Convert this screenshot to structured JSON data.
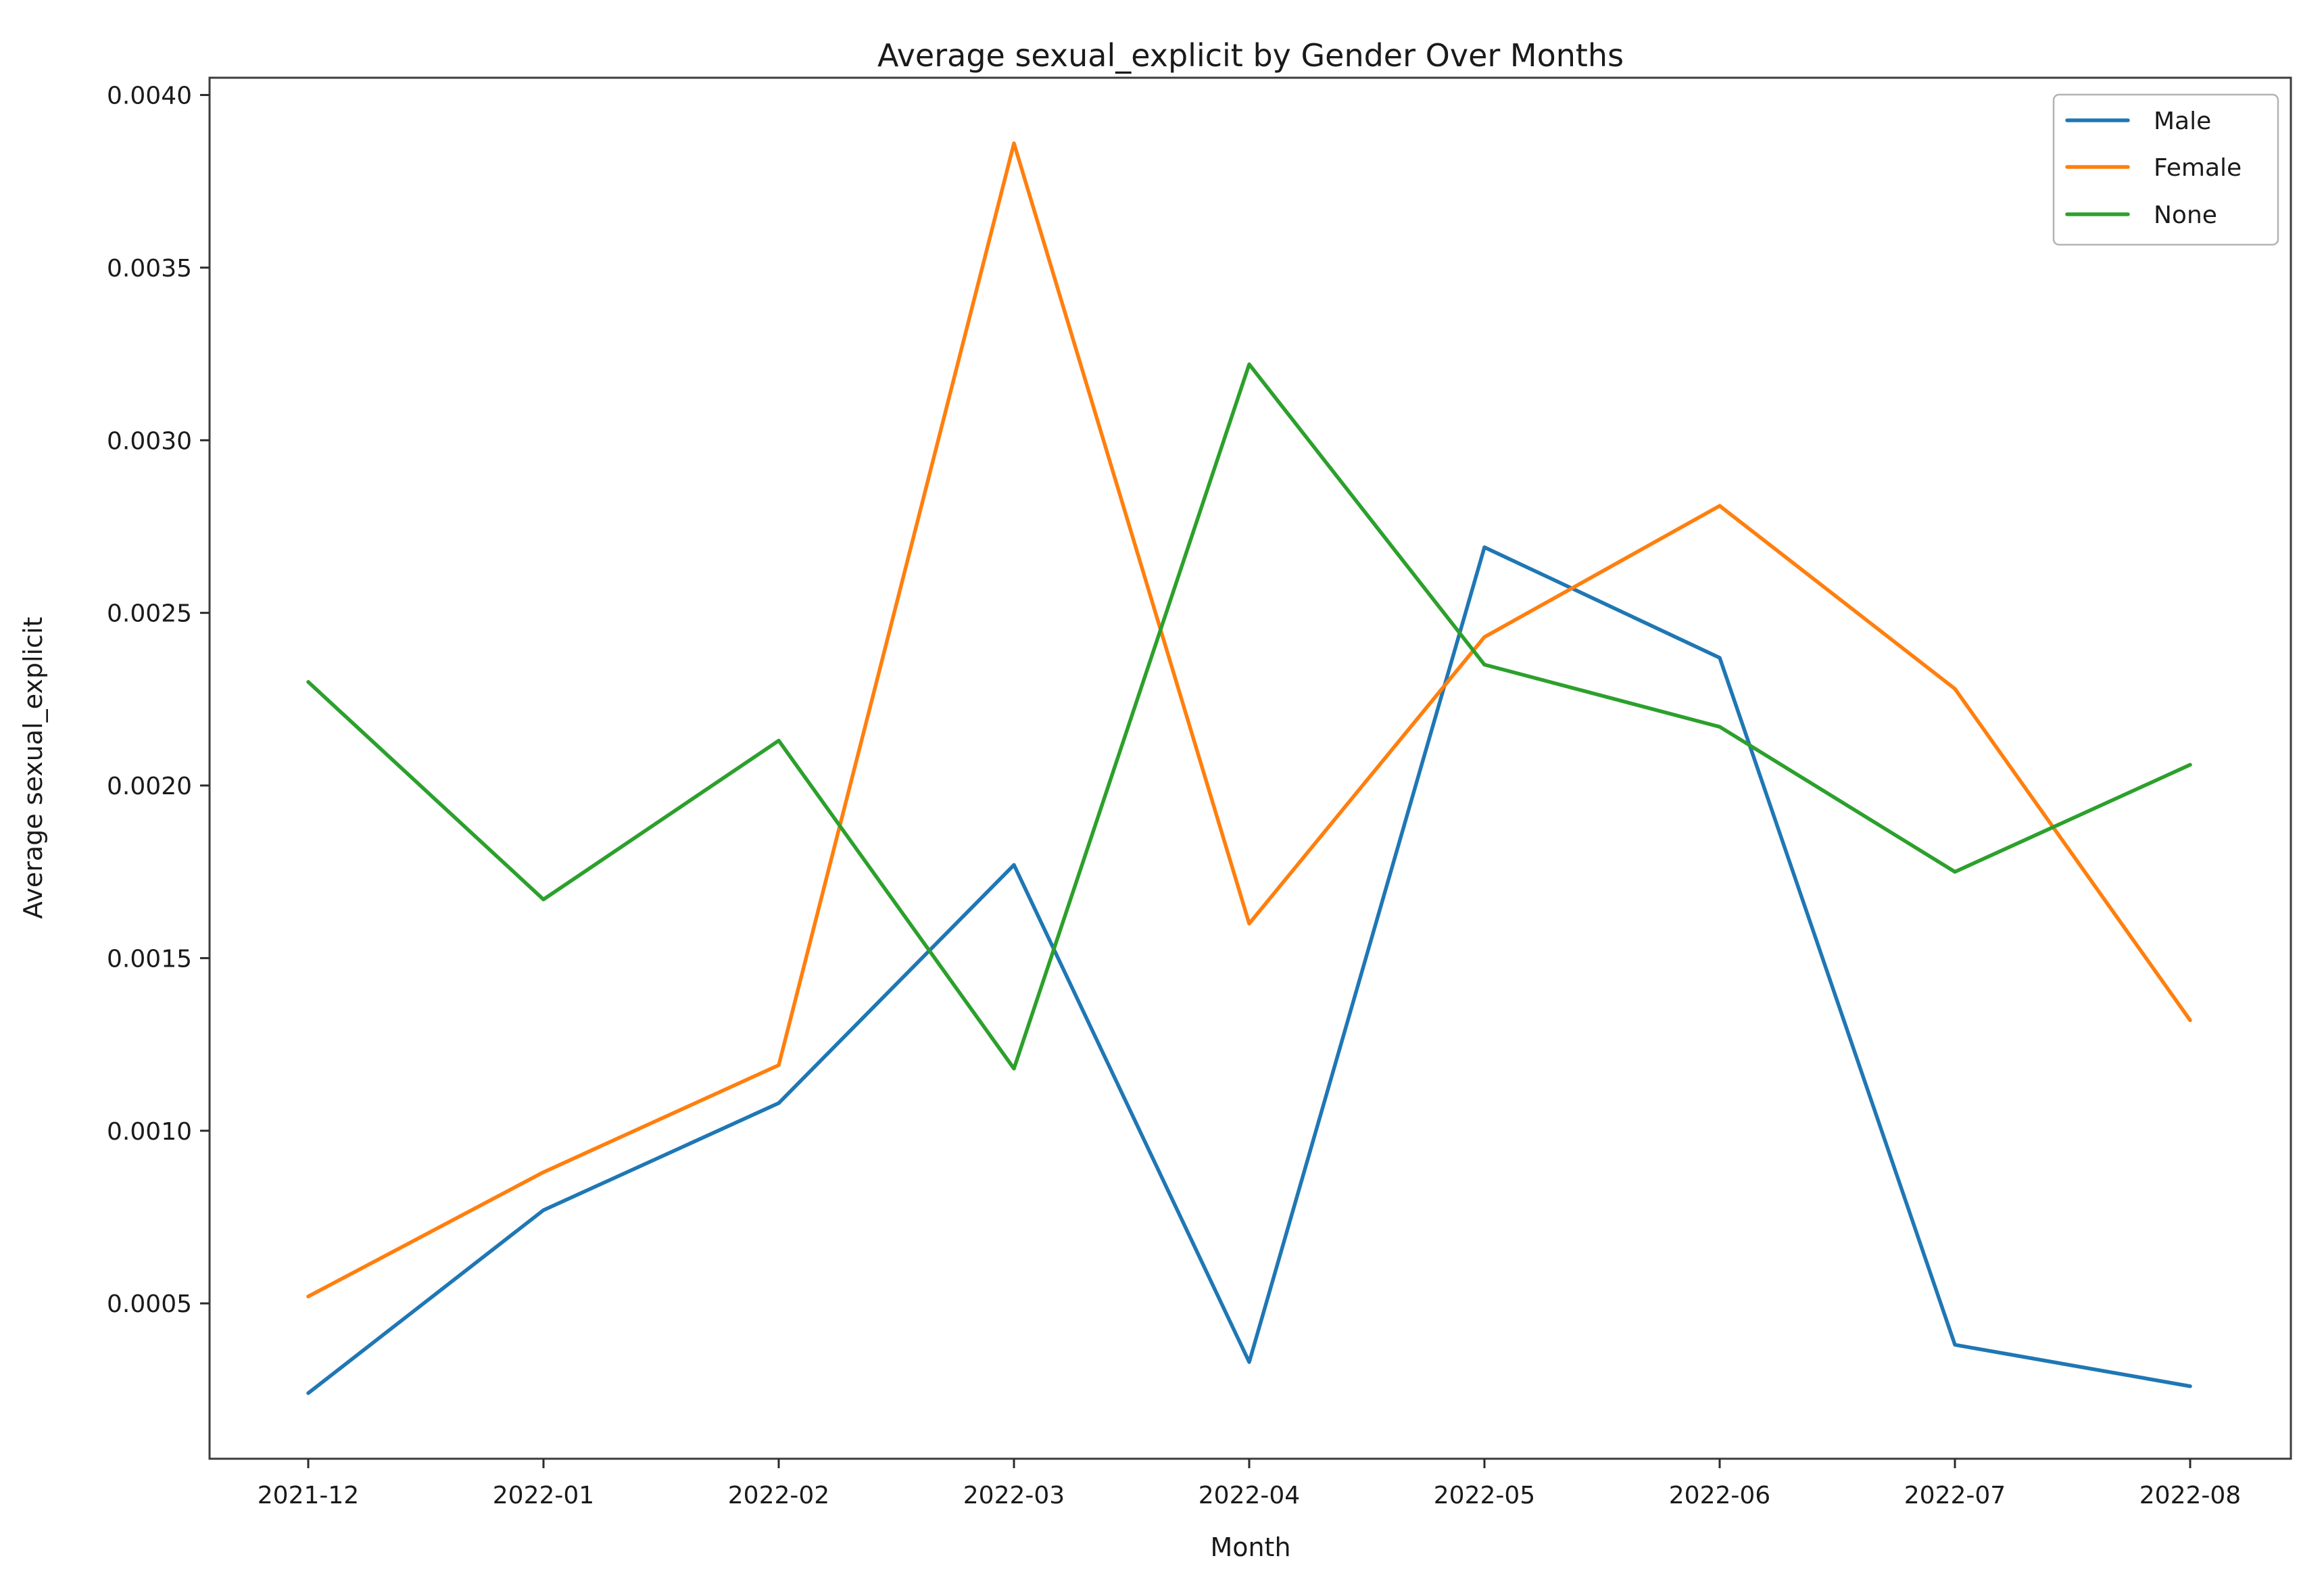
{
  "chart_data": {
    "type": "line",
    "title": "Average sexual_explicit by Gender Over Months",
    "xlabel": "Month",
    "ylabel": "Average sexual_explicit",
    "categories": [
      "2021-12",
      "2022-01",
      "2022-02",
      "2022-03",
      "2022-04",
      "2022-05",
      "2022-06",
      "2022-07",
      "2022-08"
    ],
    "series": [
      {
        "name": "Male",
        "color": "#1f77b4",
        "values": [
          0.00024,
          0.00077,
          0.00108,
          0.00177,
          0.00033,
          0.00269,
          0.00237,
          0.00038,
          0.00026
        ]
      },
      {
        "name": "Female",
        "color": "#ff7f0e",
        "values": [
          0.00052,
          0.00088,
          0.00119,
          0.00386,
          0.0016,
          0.00243,
          0.00281,
          0.00228,
          0.00132
        ]
      },
      {
        "name": "None",
        "color": "#2ca02c",
        "values": [
          0.0023,
          0.00167,
          0.00213,
          0.00118,
          0.00322,
          0.00235,
          0.00217,
          0.00175,
          0.00206
        ]
      }
    ],
    "y_ticks": [
      0.0005,
      0.001,
      0.0015,
      0.002,
      0.0025,
      0.003,
      0.0035,
      0.004
    ],
    "y_tick_labels": [
      "0.0005",
      "0.0010",
      "0.0015",
      "0.0020",
      "0.0025",
      "0.0030",
      "0.0035",
      "0.0040"
    ],
    "ylim": [
      5e-05,
      0.00405
    ],
    "grid": false,
    "legend": {
      "position": "upper right",
      "entries": [
        "Male",
        "Female",
        "None"
      ]
    },
    "frame_color": "#3c3c3c",
    "tick_color": "#2b2b2b",
    "background": "#ffffff"
  }
}
